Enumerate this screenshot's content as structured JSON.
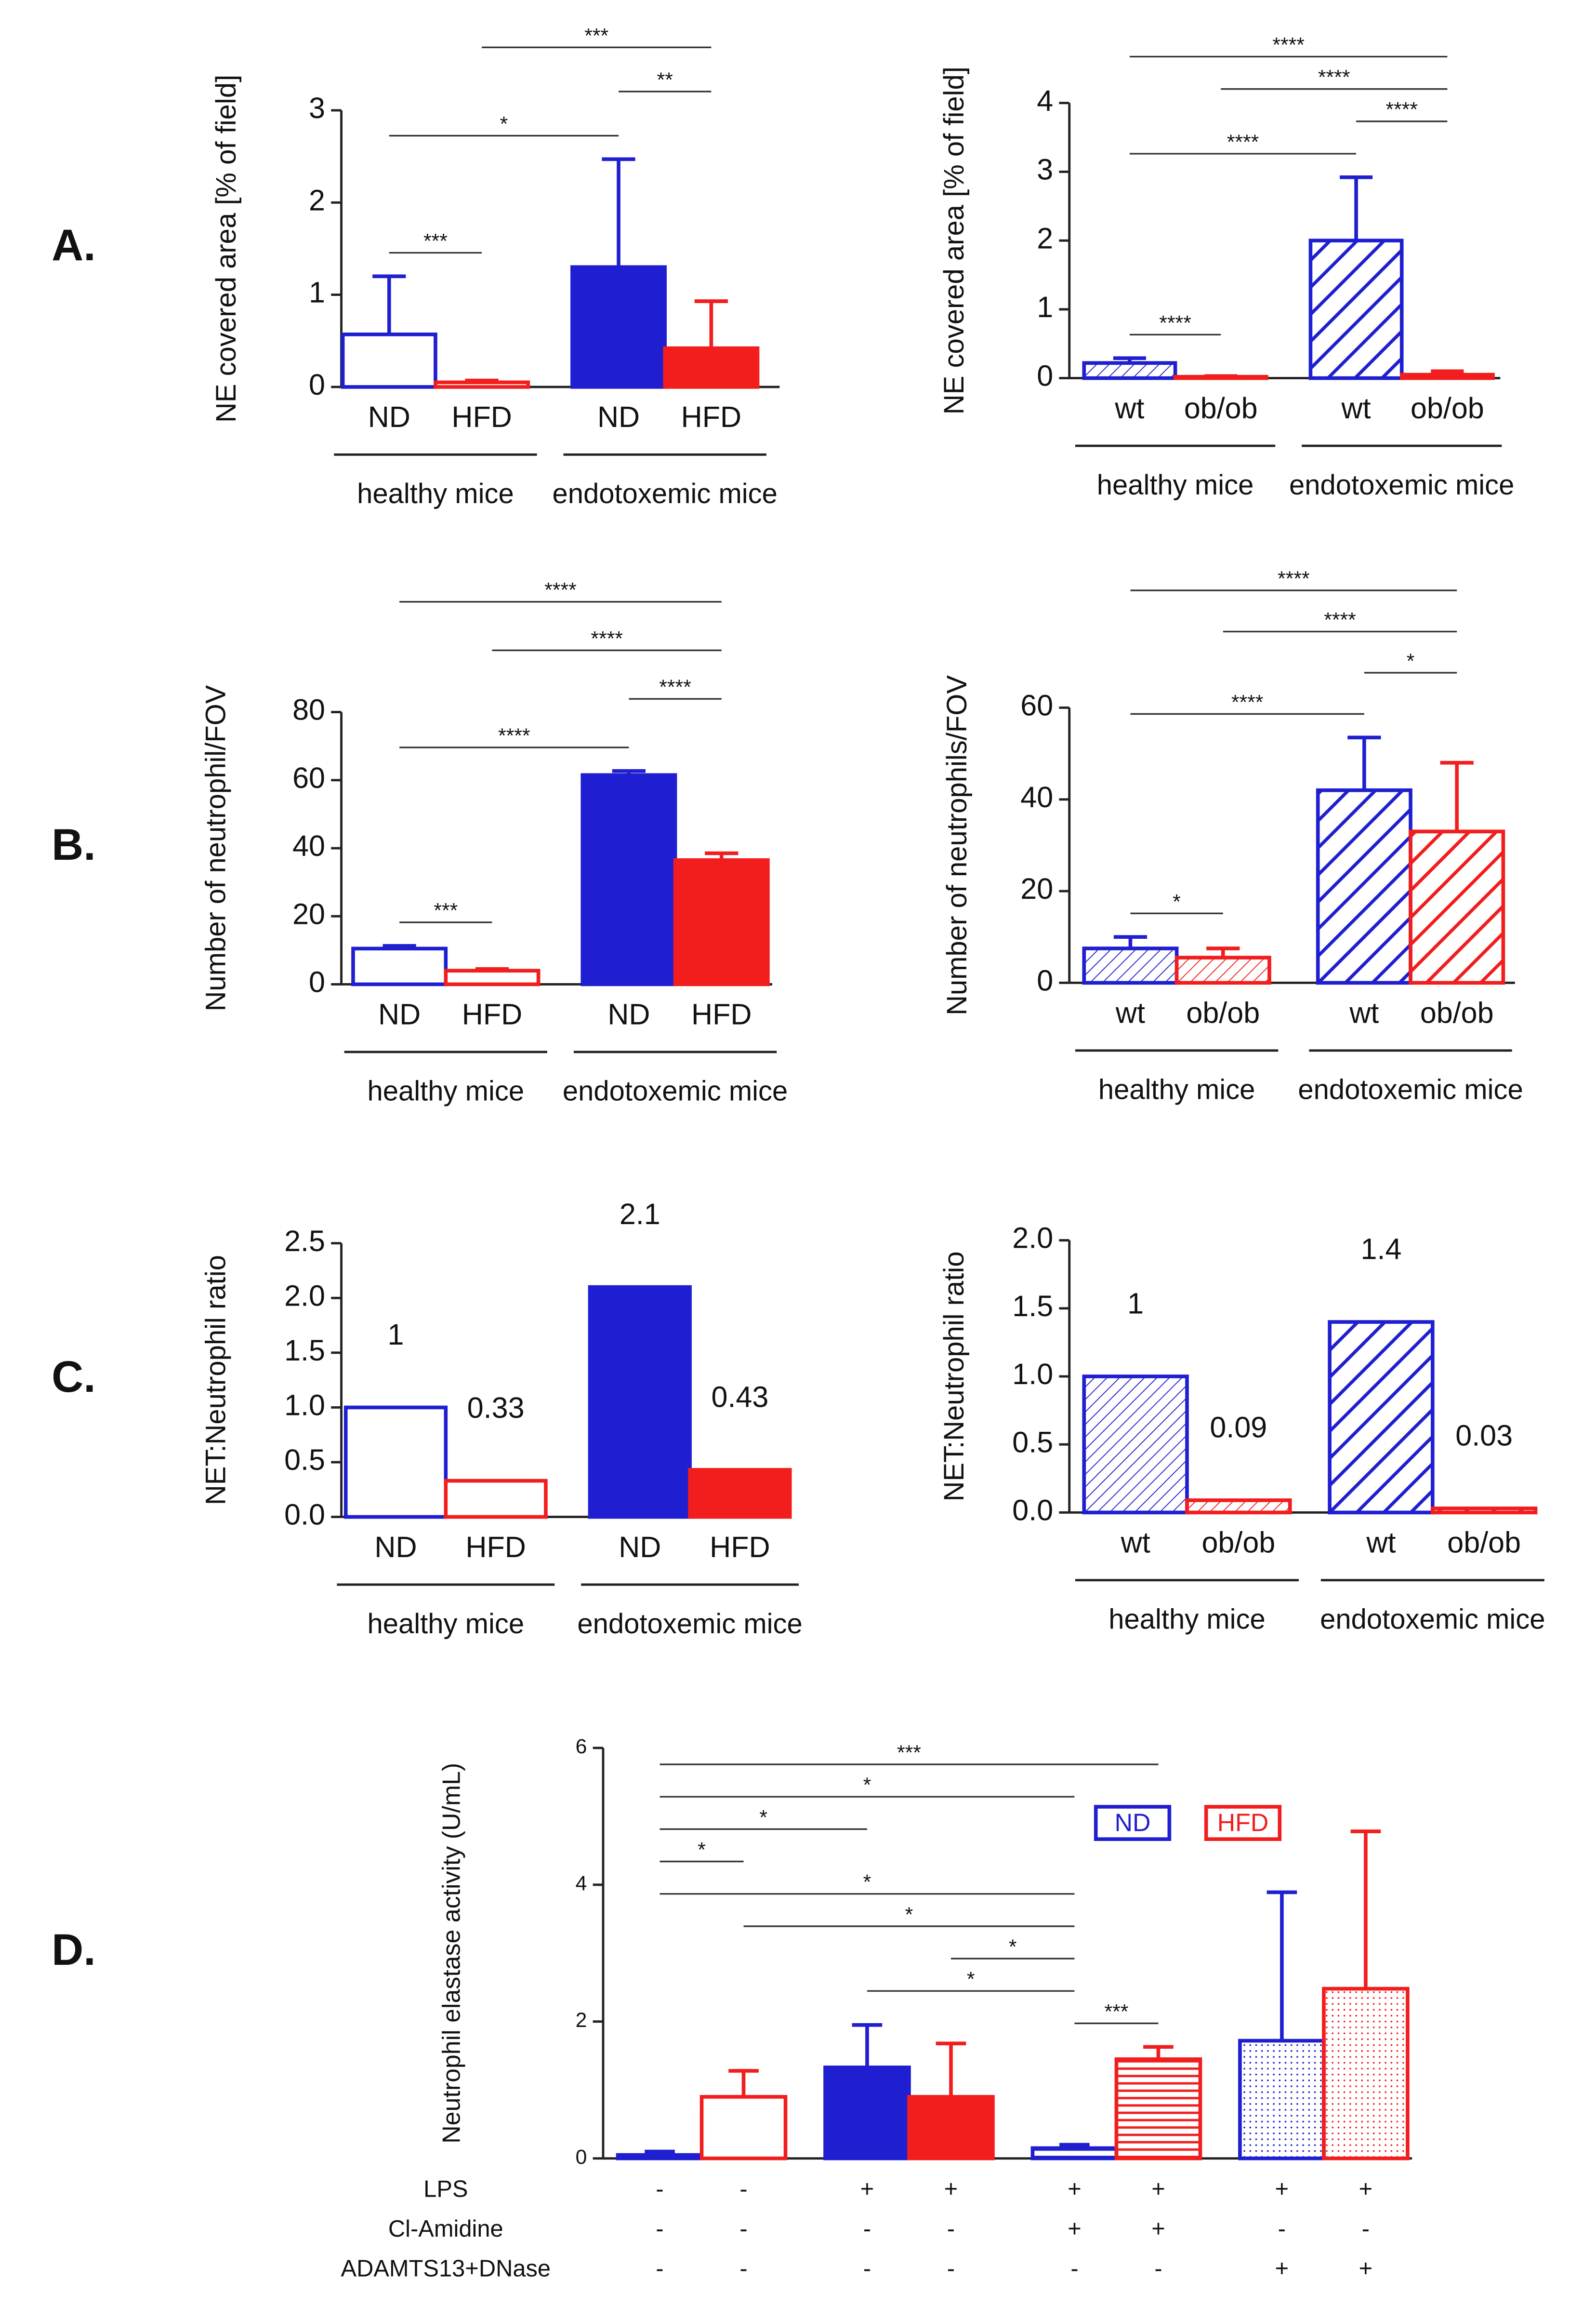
{
  "chart_data": [
    {
      "type": "bar",
      "panel": "A.",
      "ylabel": "NE covered area [% of field]",
      "categories": [
        "ND",
        "HFD",
        "ND",
        "HFD"
      ],
      "groups": [
        "healthy mice",
        "endotoxemic mice"
      ],
      "values": [
        0.57,
        0.05,
        1.3,
        0.42
      ],
      "errors": [
        0.63,
        0.02,
        1.17,
        0.51
      ],
      "colors": [
        "#1f1fd1",
        "#f21d1d",
        "#1f1fd1",
        "#f21d1d"
      ],
      "fills": [
        "open",
        "open",
        "solid",
        "solid"
      ],
      "ylim": [
        0,
        3
      ],
      "yticks": [
        0,
        1,
        2,
        3
      ],
      "significance": [
        {
          "label": "***",
          "from": 0,
          "to": 1
        },
        {
          "label": "*",
          "from": 0,
          "to": 2
        },
        {
          "label": "**",
          "from": 2,
          "to": 3
        },
        {
          "label": "***",
          "from": 1,
          "to": 3
        }
      ]
    },
    {
      "type": "bar",
      "ylabel": "NE covered area [% of field]",
      "categories": [
        "wt",
        "ob/ob",
        "wt",
        "ob/ob"
      ],
      "groups": [
        "healthy mice",
        "endotoxemic mice"
      ],
      "values": [
        0.22,
        0.02,
        2.0,
        0.05
      ],
      "errors": [
        0.07,
        0.01,
        0.92,
        0.05
      ],
      "colors": [
        "#1f1fd1",
        "#f21d1d",
        "#1f1fd1",
        "#f21d1d"
      ],
      "fills": [
        "hatch",
        "hatch",
        "hatch-bold",
        "hatch-bold"
      ],
      "ylim": [
        0,
        4
      ],
      "yticks": [
        0,
        1,
        2,
        3,
        4
      ],
      "significance": [
        {
          "label": "****",
          "from": 0,
          "to": 1
        },
        {
          "label": "****",
          "from": 0,
          "to": 2
        },
        {
          "label": "****",
          "from": 2,
          "to": 3
        },
        {
          "label": "****",
          "from": 1,
          "to": 3
        },
        {
          "label": "****",
          "from": 0,
          "to": 3
        }
      ]
    },
    {
      "type": "bar",
      "panel": "B.",
      "ylabel": "Number of neutrophil/FOV",
      "categories": [
        "ND",
        "HFD",
        "ND",
        "HFD"
      ],
      "groups": [
        "healthy mice",
        "endotoxemic mice"
      ],
      "values": [
        10.5,
        4,
        61.5,
        36.5
      ],
      "errors": [
        0.8,
        0.5,
        1.2,
        2
      ],
      "colors": [
        "#1f1fd1",
        "#f21d1d",
        "#1f1fd1",
        "#f21d1d"
      ],
      "fills": [
        "open",
        "open",
        "solid",
        "solid"
      ],
      "ylim": [
        0,
        80
      ],
      "yticks": [
        0,
        20,
        40,
        60,
        80
      ],
      "significance": [
        {
          "label": "***",
          "from": 0,
          "to": 1
        },
        {
          "label": "****",
          "from": 0,
          "to": 2
        },
        {
          "label": "****",
          "from": 2,
          "to": 3
        },
        {
          "label": "****",
          "from": 1,
          "to": 3
        },
        {
          "label": "****",
          "from": 0,
          "to": 3
        }
      ]
    },
    {
      "type": "bar",
      "ylabel": "Number of neutrophils/FOV",
      "categories": [
        "wt",
        "ob/ob",
        "wt",
        "ob/ob"
      ],
      "groups": [
        "healthy mice",
        "endotoxemic mice"
      ],
      "values": [
        7.5,
        5.5,
        42,
        33
      ],
      "errors": [
        2.5,
        2,
        11.5,
        15
      ],
      "colors": [
        "#1f1fd1",
        "#f21d1d",
        "#1f1fd1",
        "#f21d1d"
      ],
      "fills": [
        "hatch",
        "hatch",
        "hatch-bold",
        "hatch-bold"
      ],
      "ylim": [
        0,
        60
      ],
      "yticks": [
        0,
        20,
        40,
        60
      ],
      "significance": [
        {
          "label": "*",
          "from": 0,
          "to": 1
        },
        {
          "label": "****",
          "from": 0,
          "to": 2
        },
        {
          "label": "*",
          "from": 2,
          "to": 3
        },
        {
          "label": "****",
          "from": 1,
          "to": 3
        },
        {
          "label": "****",
          "from": 0,
          "to": 3
        }
      ]
    },
    {
      "type": "bar",
      "panel": "C.",
      "ylabel": "NET:Neutrophil ratio",
      "show_values": true,
      "categories": [
        "ND",
        "HFD",
        "ND",
        "HFD"
      ],
      "groups": [
        "healthy mice",
        "endotoxemic mice"
      ],
      "values": [
        1,
        0.33,
        2.1,
        0.43
      ],
      "colors": [
        "#1f1fd1",
        "#f21d1d",
        "#1f1fd1",
        "#f21d1d"
      ],
      "fills": [
        "open",
        "open",
        "solid",
        "solid"
      ],
      "ylim": [
        0,
        2.5
      ],
      "yticks": [
        {
          "value": 0,
          "label": "0.0"
        },
        0.5,
        {
          "value": 1,
          "label": "1.0"
        },
        1.5,
        {
          "value": 2,
          "label": "2.0"
        },
        2.5
      ]
    },
    {
      "type": "bar",
      "ylabel": "NET:Neutrophil ratio",
      "show_values": true,
      "categories": [
        "wt",
        "ob/ob",
        "wt",
        "ob/ob"
      ],
      "groups": [
        "healthy mice",
        "endotoxemic mice"
      ],
      "values": [
        1,
        0.09,
        1.4,
        0.03
      ],
      "colors": [
        "#1f1fd1",
        "#f21d1d",
        "#1f1fd1",
        "#f21d1d"
      ],
      "fills": [
        "hatch",
        "hatch",
        "hatch-bold",
        "hatch-bold"
      ],
      "ylim": [
        0,
        2
      ],
      "yticks": [
        {
          "value": 0,
          "label": "0.0"
        },
        0.5,
        {
          "value": 1,
          "label": "1.0"
        },
        1.5,
        {
          "value": 2,
          "label": "2.0"
        }
      ]
    },
    {
      "type": "bar",
      "panel": "D.",
      "ylabel": "Neutrophil elastase activity (U/mL)",
      "values": [
        0.05,
        0.9,
        1.33,
        0.9,
        0.15,
        1.45,
        1.72,
        2.48
      ],
      "errors": [
        0.05,
        0.38,
        0.62,
        0.78,
        0.05,
        0.18,
        2.17,
        2.3
      ],
      "colors": [
        "#1f1fd1",
        "#f21d1d",
        "#1f1fd1",
        "#f21d1d",
        "#1f1fd1",
        "#f21d1d",
        "#1f1fd1",
        "#f21d1d"
      ],
      "fills": [
        "open",
        "open",
        "solid",
        "solid",
        "lines",
        "lines",
        "dots",
        "dots"
      ],
      "ylim": [
        0,
        6
      ],
      "yticks": [
        0,
        2,
        4,
        6
      ],
      "legend": [
        {
          "name": "ND",
          "color": "#1f1fd1"
        },
        {
          "name": "HFD",
          "color": "#f21d1d"
        }
      ],
      "rows": [
        {
          "name": "LPS",
          "signs": [
            "-",
            "-",
            "+",
            "+",
            "+",
            "+",
            "+",
            "+"
          ]
        },
        {
          "name": "Cl-Amidine",
          "signs": [
            "-",
            "-",
            "-",
            "-",
            "+",
            "+",
            "-",
            "-"
          ]
        },
        {
          "name": "ADAMTS13+DNase",
          "signs": [
            "-",
            "-",
            "-",
            "-",
            "-",
            "-",
            "+",
            "+"
          ]
        }
      ],
      "significance": [
        {
          "label": "***",
          "from": 4,
          "to": 5
        },
        {
          "label": "*",
          "from": 2,
          "to": 4
        },
        {
          "label": "*",
          "from": 3,
          "to": 4
        },
        {
          "label": "*",
          "from": 1,
          "to": 4
        },
        {
          "label": "*",
          "from": 0,
          "to": 4
        },
        {
          "label": "*",
          "from": 0,
          "to": 1
        },
        {
          "label": "*",
          "from": 0,
          "to": 2
        },
        {
          "label": "*",
          "from": 0,
          "to": 4
        },
        {
          "label": "***",
          "from": 0,
          "to": 5
        }
      ]
    }
  ]
}
